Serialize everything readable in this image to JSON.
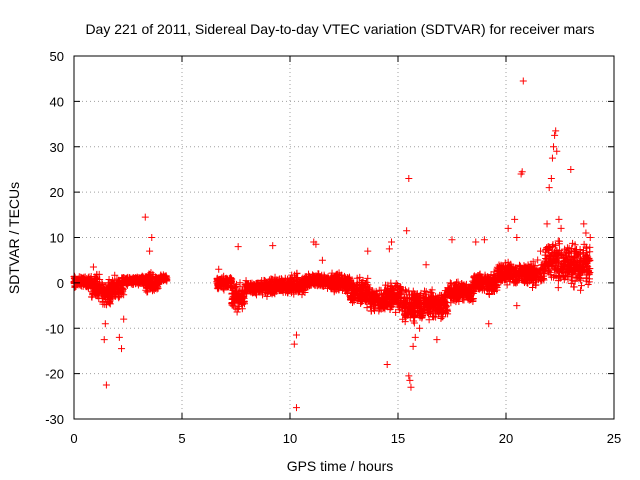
{
  "chart_data": {
    "type": "scatter",
    "title": "Day 221 of 2011, Sidereal Day-to-day VTEC variation (SDTVAR) for receiver mars",
    "xlabel": "GPS time / hours",
    "ylabel": "SDTVAR / TECUs",
    "xlim": [
      0,
      25
    ],
    "ylim": [
      -30,
      50
    ],
    "xticks": [
      0,
      5,
      10,
      15,
      20,
      25
    ],
    "yticks": [
      -30,
      -20,
      -10,
      0,
      10,
      20,
      30,
      40,
      50
    ],
    "grid": true,
    "marker": "+",
    "color": "#ff0000",
    "band_segments": [
      {
        "x": [
          0.0,
          0.8
        ],
        "y_center": 0.3,
        "spread": 1.8
      },
      {
        "x": [
          0.8,
          1.3
        ],
        "y_center": -1.0,
        "spread": 3.5
      },
      {
        "x": [
          1.3,
          1.7
        ],
        "y_center": -2.5,
        "spread": 3.5
      },
      {
        "x": [
          1.7,
          2.3
        ],
        "y_center": -1.0,
        "spread": 3.5
      },
      {
        "x": [
          2.3,
          3.3
        ],
        "y_center": 0.5,
        "spread": 1.2
      },
      {
        "x": [
          3.3,
          3.9
        ],
        "y_center": 0.0,
        "spread": 3.0
      },
      {
        "x": [
          3.9,
          4.3
        ],
        "y_center": 1.0,
        "spread": 1.0
      },
      {
        "x": [
          6.6,
          7.3
        ],
        "y_center": 0.0,
        "spread": 1.8
      },
      {
        "x": [
          7.3,
          7.9
        ],
        "y_center": -3.0,
        "spread": 4.0
      },
      {
        "x": [
          7.9,
          8.8
        ],
        "y_center": -1.0,
        "spread": 2.0
      },
      {
        "x": [
          8.8,
          9.9
        ],
        "y_center": -0.8,
        "spread": 2.5
      },
      {
        "x": [
          9.9,
          10.7
        ],
        "y_center": -0.5,
        "spread": 3.0
      },
      {
        "x": [
          10.7,
          11.7
        ],
        "y_center": 0.5,
        "spread": 2.0
      },
      {
        "x": [
          11.7,
          12.8
        ],
        "y_center": 0.0,
        "spread": 3.0
      },
      {
        "x": [
          12.8,
          13.7
        ],
        "y_center": -2.0,
        "spread": 4.0
      },
      {
        "x": [
          13.7,
          14.4
        ],
        "y_center": -4.0,
        "spread": 3.0
      },
      {
        "x": [
          14.4,
          15.2
        ],
        "y_center": -3.0,
        "spread": 4.0
      },
      {
        "x": [
          15.2,
          16.2
        ],
        "y_center": -5.0,
        "spread": 5.0
      },
      {
        "x": [
          16.2,
          17.3
        ],
        "y_center": -5.0,
        "spread": 4.0
      },
      {
        "x": [
          17.3,
          18.5
        ],
        "y_center": -2.0,
        "spread": 3.0
      },
      {
        "x": [
          18.5,
          19.6
        ],
        "y_center": 0.0,
        "spread": 3.0
      },
      {
        "x": [
          19.6,
          20.6
        ],
        "y_center": 2.0,
        "spread": 3.0
      },
      {
        "x": [
          20.6,
          21.8
        ],
        "y_center": 2.0,
        "spread": 3.5
      },
      {
        "x": [
          21.8,
          22.4
        ],
        "y_center": 5.0,
        "spread": 5.0
      },
      {
        "x": [
          22.4,
          23.9
        ],
        "y_center": 4.0,
        "spread": 6.0
      }
    ],
    "outliers": [
      {
        "x": 1.5,
        "y": -22.5
      },
      {
        "x": 1.4,
        "y": -12.5
      },
      {
        "x": 1.45,
        "y": -9.0
      },
      {
        "x": 2.2,
        "y": -14.5
      },
      {
        "x": 2.1,
        "y": -12.0
      },
      {
        "x": 2.3,
        "y": -8.0
      },
      {
        "x": 0.9,
        "y": 3.5
      },
      {
        "x": 3.3,
        "y": 14.5
      },
      {
        "x": 3.6,
        "y": 10.0
      },
      {
        "x": 3.5,
        "y": 7.0
      },
      {
        "x": 6.7,
        "y": 3.0
      },
      {
        "x": 7.6,
        "y": 8.0
      },
      {
        "x": 9.2,
        "y": 8.2
      },
      {
        "x": 10.3,
        "y": -27.5
      },
      {
        "x": 10.2,
        "y": -13.5
      },
      {
        "x": 10.3,
        "y": -11.5
      },
      {
        "x": 11.1,
        "y": 9.0
      },
      {
        "x": 11.2,
        "y": 8.5
      },
      {
        "x": 11.5,
        "y": 5.0
      },
      {
        "x": 13.6,
        "y": 7.0
      },
      {
        "x": 14.5,
        "y": -18.0
      },
      {
        "x": 14.6,
        "y": 7.5
      },
      {
        "x": 14.7,
        "y": 9.0
      },
      {
        "x": 15.5,
        "y": 23.0
      },
      {
        "x": 15.4,
        "y": 11.5
      },
      {
        "x": 15.5,
        "y": -20.5
      },
      {
        "x": 15.55,
        "y": -21.5
      },
      {
        "x": 15.6,
        "y": -23.0
      },
      {
        "x": 15.7,
        "y": -14.0
      },
      {
        "x": 15.8,
        "y": -12.0
      },
      {
        "x": 16.0,
        "y": -10.0
      },
      {
        "x": 16.8,
        "y": -12.5
      },
      {
        "x": 16.3,
        "y": 4.0
      },
      {
        "x": 17.5,
        "y": 9.5
      },
      {
        "x": 18.6,
        "y": 9.0
      },
      {
        "x": 19.0,
        "y": 9.5
      },
      {
        "x": 19.2,
        "y": -9.0
      },
      {
        "x": 20.1,
        "y": 12.0
      },
      {
        "x": 20.4,
        "y": 14.0
      },
      {
        "x": 20.5,
        "y": 10.0
      },
      {
        "x": 20.7,
        "y": 24.0
      },
      {
        "x": 20.75,
        "y": 24.5
      },
      {
        "x": 20.8,
        "y": 44.5
      },
      {
        "x": 20.5,
        "y": -5.0
      },
      {
        "x": 21.9,
        "y": 13.0
      },
      {
        "x": 22.0,
        "y": 21.0
      },
      {
        "x": 22.1,
        "y": 23.0
      },
      {
        "x": 22.15,
        "y": 27.5
      },
      {
        "x": 22.2,
        "y": 30.0
      },
      {
        "x": 22.25,
        "y": 32.5
      },
      {
        "x": 22.3,
        "y": 33.5
      },
      {
        "x": 22.35,
        "y": 29.0
      },
      {
        "x": 22.45,
        "y": 14.0
      },
      {
        "x": 22.55,
        "y": 12.0
      },
      {
        "x": 22.8,
        "y": 7.0
      },
      {
        "x": 23.0,
        "y": 25.0
      },
      {
        "x": 23.6,
        "y": 13.0
      },
      {
        "x": 23.7,
        "y": 11.0
      },
      {
        "x": 23.9,
        "y": 10.0
      },
      {
        "x": 21.6,
        "y": 7.0
      }
    ]
  }
}
